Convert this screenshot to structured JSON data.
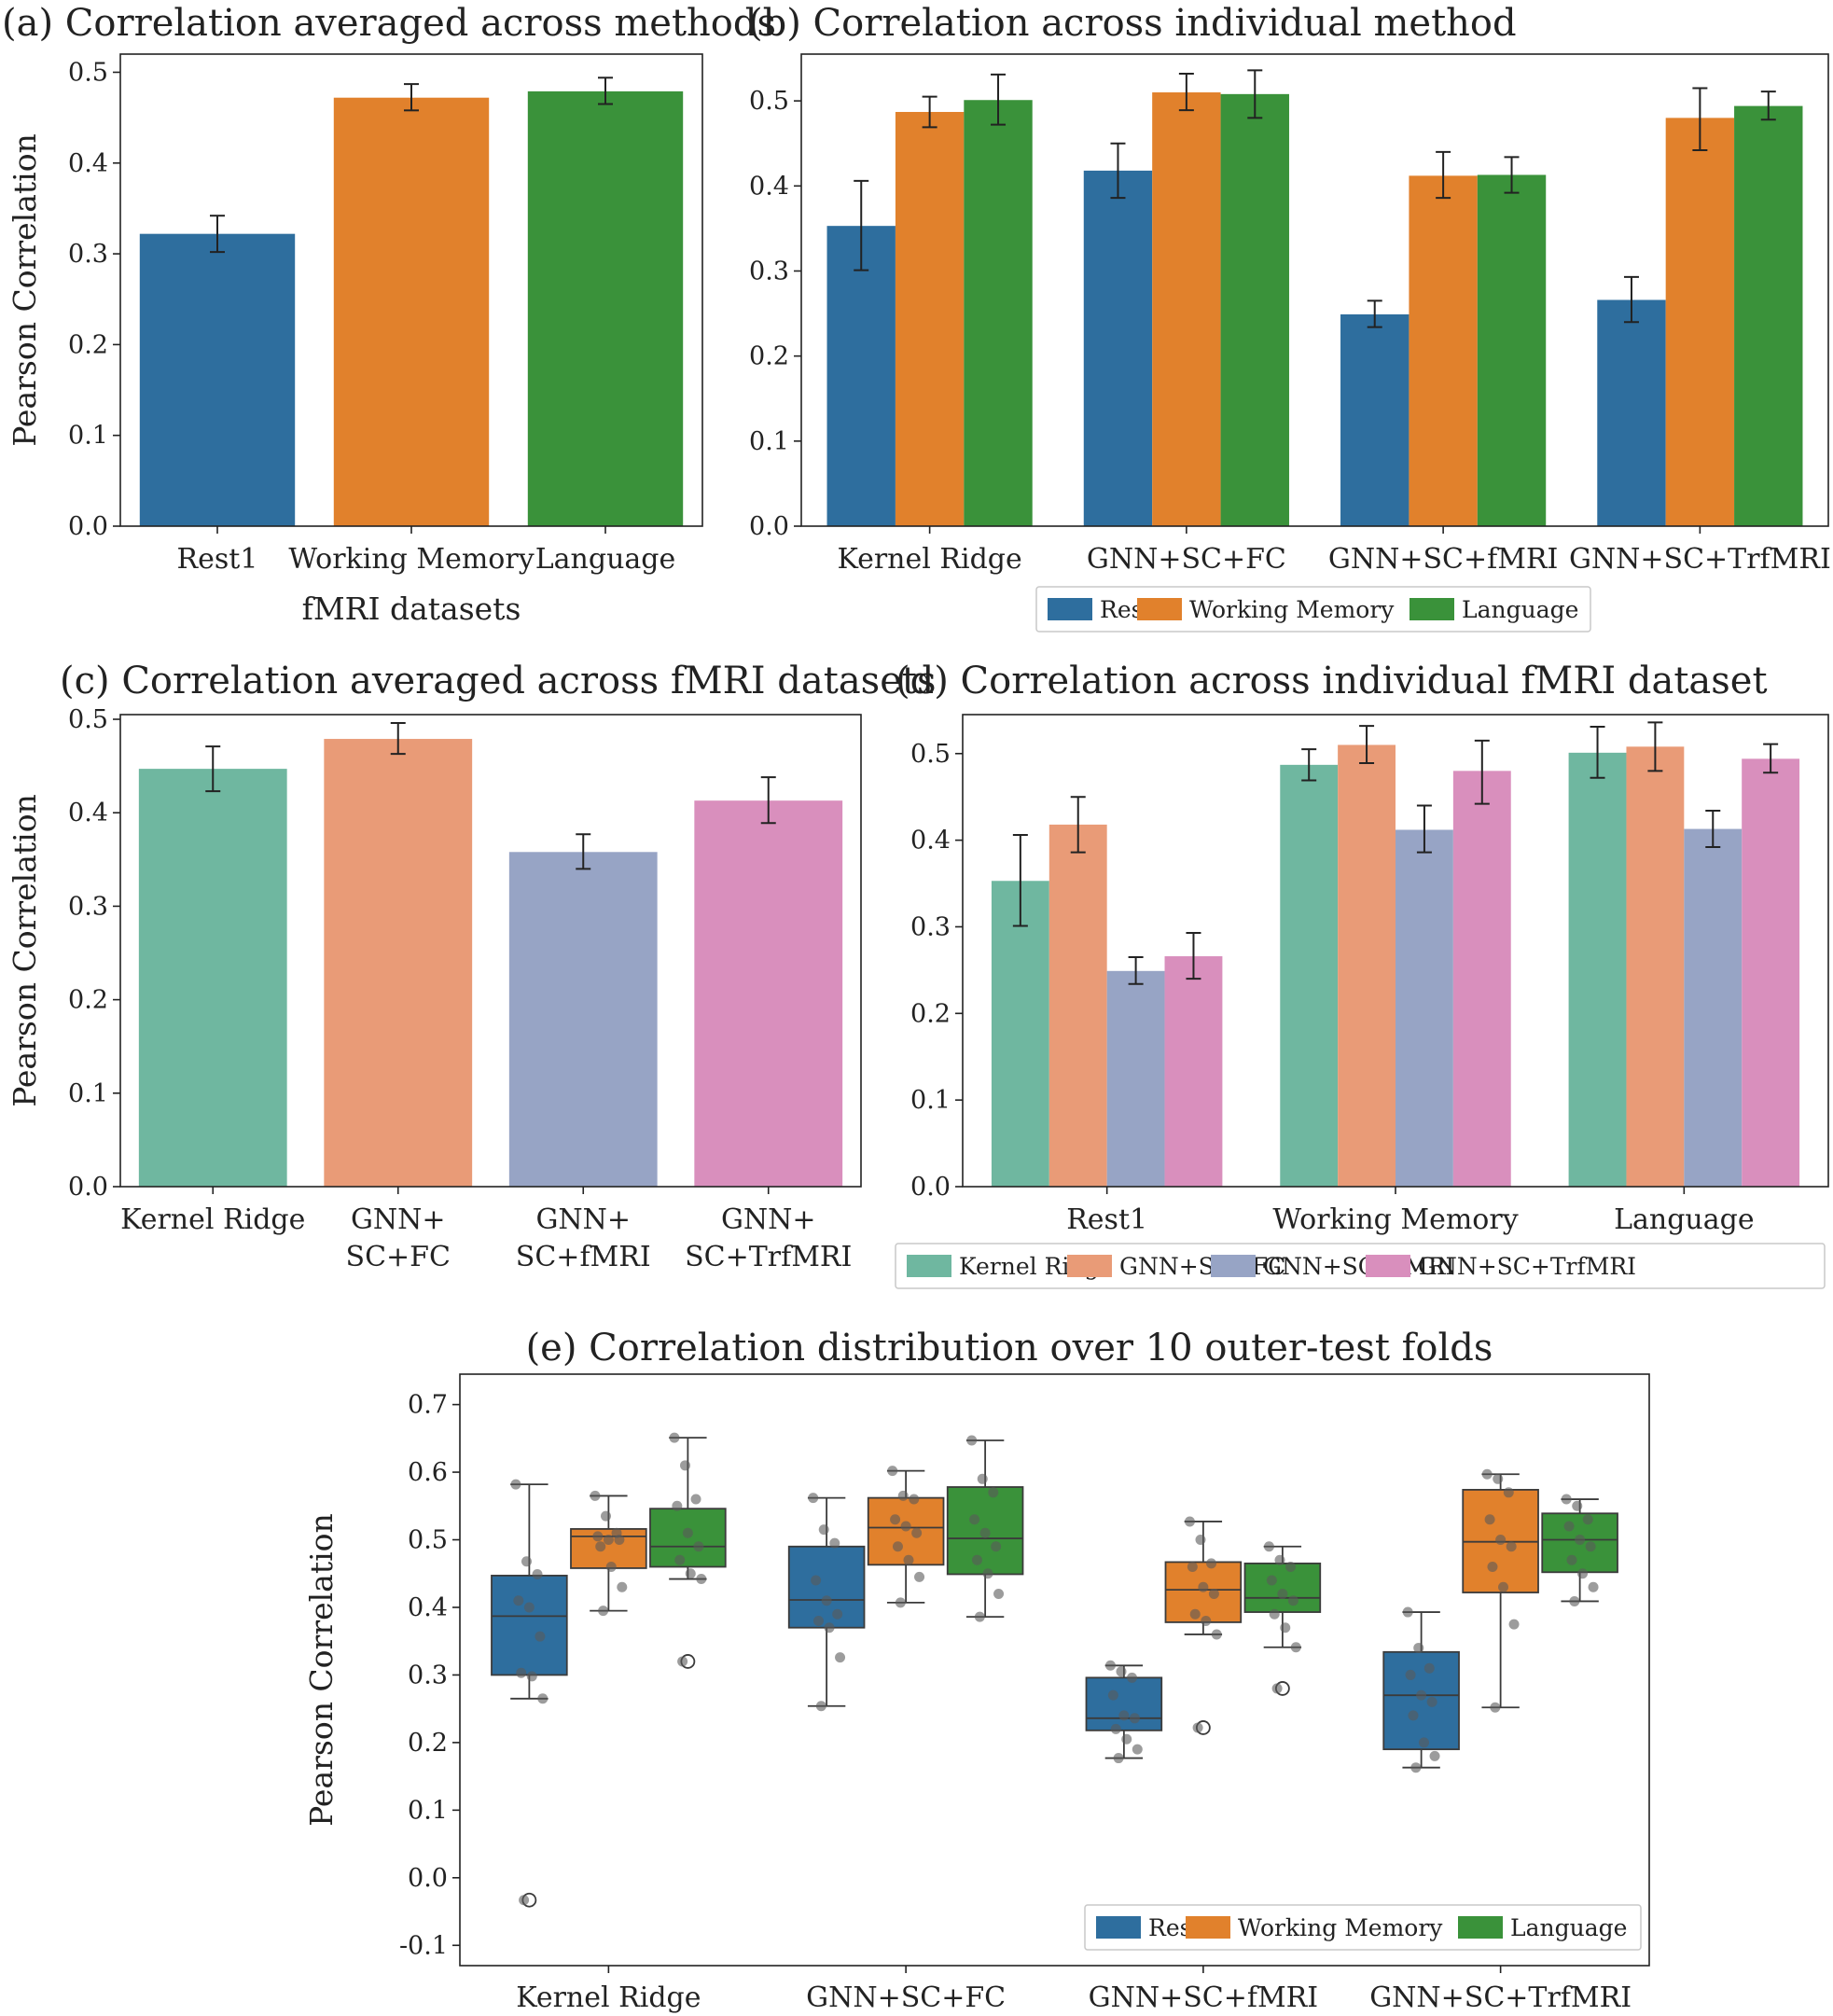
{
  "chart_data": [
    {
      "id": "a",
      "type": "bar",
      "title": "(a)  Correlation averaged across methods",
      "xlabel": "fMRI datasets",
      "ylabel": "Pearson Correlation",
      "ylim": [
        0,
        0.52
      ],
      "yticks": [
        0.0,
        0.1,
        0.2,
        0.3,
        0.4,
        0.5
      ],
      "ytick_labels": [
        "0.0",
        "0.1",
        "0.2",
        "0.3",
        "0.4",
        "0.5"
      ],
      "categories": [
        "Rest1",
        "Working Memory",
        "Language"
      ],
      "values": [
        0.322,
        0.472,
        0.479
      ],
      "errors": [
        [
          0.302,
          0.342
        ],
        [
          0.458,
          0.487
        ],
        [
          0.465,
          0.494
        ]
      ],
      "colors": [
        "#2e6e9e",
        "#e1812c",
        "#3a923a"
      ]
    },
    {
      "id": "b",
      "type": "bar",
      "title": "(b)    Correlation across individual method",
      "xlabel": "",
      "ylabel": "",
      "ylim": [
        0,
        0.555
      ],
      "yticks": [
        0.0,
        0.1,
        0.2,
        0.3,
        0.4,
        0.5
      ],
      "ytick_labels": [
        "0.0",
        "0.1",
        "0.2",
        "0.3",
        "0.4",
        "0.5"
      ],
      "categories": [
        "Kernel Ridge",
        "GNN+SC+FC",
        "GNN+SC+fMRI",
        "GNN+SC+TrfMRI"
      ],
      "series": [
        {
          "name": "Rest1",
          "color": "#2e6e9e",
          "values": [
            0.353,
            0.418,
            0.249,
            0.266
          ],
          "errors": [
            [
              0.301,
              0.406
            ],
            [
              0.386,
              0.45
            ],
            [
              0.234,
              0.265
            ],
            [
              0.24,
              0.293
            ]
          ]
        },
        {
          "name": "Working Memory",
          "color": "#e1812c",
          "values": [
            0.487,
            0.51,
            0.412,
            0.48
          ],
          "errors": [
            [
              0.469,
              0.505
            ],
            [
              0.489,
              0.532
            ],
            [
              0.386,
              0.44
            ],
            [
              0.442,
              0.515
            ]
          ]
        },
        {
          "name": "Language",
          "color": "#3a923a",
          "values": [
            0.501,
            0.508,
            0.413,
            0.494
          ],
          "errors": [
            [
              0.472,
              0.531
            ],
            [
              0.48,
              0.536
            ],
            [
              0.392,
              0.434
            ],
            [
              0.478,
              0.511
            ]
          ]
        }
      ],
      "legend": {
        "position": "below",
        "entries": [
          "Rest1",
          "Working Memory",
          "Language"
        ]
      }
    },
    {
      "id": "c",
      "type": "bar",
      "title": "(c)  Correlation averaged across fMRI datasets",
      "xlabel": "",
      "ylabel": "Pearson Correlation",
      "ylim": [
        0,
        0.505
      ],
      "yticks": [
        0.0,
        0.1,
        0.2,
        0.3,
        0.4,
        0.5
      ],
      "ytick_labels": [
        "0.0",
        "0.1",
        "0.2",
        "0.3",
        "0.4",
        "0.5"
      ],
      "categories": [
        "Kernel Ridge",
        "GNN+\nSC+FC",
        "GNN+\nSC+fMRI",
        "GNN+\nSC+TrfMRI"
      ],
      "values": [
        0.447,
        0.479,
        0.358,
        0.413
      ],
      "errors": [
        [
          0.423,
          0.471
        ],
        [
          0.463,
          0.496
        ],
        [
          0.34,
          0.377
        ],
        [
          0.389,
          0.438
        ]
      ],
      "colors": [
        "#6fb7a0",
        "#e99b77",
        "#97a4c5",
        "#d98fbd"
      ]
    },
    {
      "id": "d",
      "type": "bar",
      "title": "(d)    Correlation across individual fMRI dataset",
      "xlabel": "",
      "ylabel": "",
      "ylim": [
        0,
        0.545
      ],
      "yticks": [
        0.0,
        0.1,
        0.2,
        0.3,
        0.4,
        0.5
      ],
      "ytick_labels": [
        "0.0",
        "0.1",
        "0.2",
        "0.3",
        "0.4",
        "0.5"
      ],
      "categories": [
        "Rest1",
        "Working Memory",
        "Language"
      ],
      "series": [
        {
          "name": "Kernel Ridge",
          "color": "#6fb7a0",
          "values": [
            0.353,
            0.487,
            0.501
          ],
          "errors": [
            [
              0.301,
              0.406
            ],
            [
              0.469,
              0.505
            ],
            [
              0.472,
              0.531
            ]
          ]
        },
        {
          "name": "GNN+SC+FC",
          "color": "#e99b77",
          "values": [
            0.418,
            0.51,
            0.508
          ],
          "errors": [
            [
              0.386,
              0.45
            ],
            [
              0.489,
              0.532
            ],
            [
              0.48,
              0.536
            ]
          ]
        },
        {
          "name": "GNN+SC+fMRI",
          "color": "#97a4c5",
          "values": [
            0.249,
            0.412,
            0.413
          ],
          "errors": [
            [
              0.234,
              0.265
            ],
            [
              0.386,
              0.44
            ],
            [
              0.392,
              0.434
            ]
          ]
        },
        {
          "name": "GNN+SC+TrfMRI",
          "color": "#d98fbd",
          "values": [
            0.266,
            0.48,
            0.494
          ],
          "errors": [
            [
              0.24,
              0.293
            ],
            [
              0.442,
              0.515
            ],
            [
              0.478,
              0.511
            ]
          ]
        }
      ],
      "legend": {
        "position": "below",
        "entries": [
          "Kernel Ridge",
          "GNN+SC+FC",
          "GNN+SC+fMRI",
          "GNN+SC+TrfMRI"
        ]
      }
    },
    {
      "id": "e",
      "type": "box",
      "title": "(e)  Correlation distribution over 10 outer-test folds",
      "xlabel": "",
      "ylabel": "Pearson Correlation",
      "ylim": [
        -0.13,
        0.745
      ],
      "yticks": [
        -0.1,
        0.0,
        0.1,
        0.2,
        0.3,
        0.4,
        0.5,
        0.6,
        0.7
      ],
      "ytick_labels": [
        "-0.1",
        "0.0",
        "0.1",
        "0.2",
        "0.3",
        "0.4",
        "0.5",
        "0.6",
        "0.7"
      ],
      "categories": [
        "Kernel Ridge",
        "GNN+SC+FC",
        "GNN+SC+fMRI",
        "GNN+SC+TrfMRI"
      ],
      "series": [
        {
          "name": "Rest1",
          "color": "#2e6e9e",
          "boxes": [
            {
              "min": 0.265,
              "q1": 0.3,
              "median": 0.387,
              "q3": 0.447,
              "max": 0.582,
              "outliers": [
                -0.033
              ],
              "points": [
                0.582,
                0.468,
                0.449,
                0.41,
                0.4,
                0.357,
                0.303,
                0.298,
                0.265,
                -0.033
              ]
            },
            {
              "min": 0.254,
              "q1": 0.37,
              "median": 0.411,
              "q3": 0.49,
              "max": 0.562,
              "outliers": [],
              "points": [
                0.562,
                0.515,
                0.495,
                0.44,
                0.41,
                0.39,
                0.38,
                0.37,
                0.326,
                0.254
              ]
            },
            {
              "min": 0.177,
              "q1": 0.218,
              "median": 0.236,
              "q3": 0.296,
              "max": 0.314,
              "outliers": [],
              "points": [
                0.314,
                0.305,
                0.296,
                0.27,
                0.24,
                0.236,
                0.22,
                0.205,
                0.19,
                0.177
              ]
            },
            {
              "min": 0.163,
              "q1": 0.19,
              "median": 0.27,
              "q3": 0.334,
              "max": 0.393,
              "outliers": [],
              "points": [
                0.393,
                0.34,
                0.31,
                0.3,
                0.27,
                0.26,
                0.24,
                0.2,
                0.18,
                0.163
              ]
            }
          ]
        },
        {
          "name": "Working Memory",
          "color": "#e1812c",
          "boxes": [
            {
              "min": 0.395,
              "q1": 0.458,
              "median": 0.505,
              "q3": 0.516,
              "max": 0.565,
              "outliers": [],
              "points": [
                0.565,
                0.535,
                0.51,
                0.505,
                0.5,
                0.5,
                0.49,
                0.46,
                0.43,
                0.395
              ]
            },
            {
              "min": 0.407,
              "q1": 0.463,
              "median": 0.518,
              "q3": 0.562,
              "max": 0.602,
              "outliers": [],
              "points": [
                0.602,
                0.565,
                0.56,
                0.53,
                0.52,
                0.51,
                0.49,
                0.47,
                0.445,
                0.407
              ]
            },
            {
              "min": 0.36,
              "q1": 0.378,
              "median": 0.426,
              "q3": 0.467,
              "max": 0.527,
              "outliers": [
                0.222
              ],
              "points": [
                0.527,
                0.5,
                0.465,
                0.46,
                0.43,
                0.42,
                0.39,
                0.38,
                0.36,
                0.222
              ]
            },
            {
              "min": 0.252,
              "q1": 0.422,
              "median": 0.497,
              "q3": 0.574,
              "max": 0.597,
              "outliers": [],
              "points": [
                0.597,
                0.59,
                0.57,
                0.53,
                0.5,
                0.49,
                0.46,
                0.43,
                0.375,
                0.252
              ]
            }
          ]
        },
        {
          "name": "Language",
          "color": "#3a923a",
          "boxes": [
            {
              "min": 0.442,
              "q1": 0.46,
              "median": 0.49,
              "q3": 0.546,
              "max": 0.651,
              "outliers": [
                0.32
              ],
              "points": [
                0.651,
                0.61,
                0.56,
                0.55,
                0.51,
                0.49,
                0.47,
                0.45,
                0.442,
                0.32
              ]
            },
            {
              "min": 0.386,
              "q1": 0.449,
              "median": 0.502,
              "q3": 0.578,
              "max": 0.647,
              "outliers": [],
              "points": [
                0.647,
                0.59,
                0.57,
                0.53,
                0.51,
                0.49,
                0.47,
                0.45,
                0.42,
                0.386
              ]
            },
            {
              "min": 0.341,
              "q1": 0.393,
              "median": 0.414,
              "q3": 0.465,
              "max": 0.49,
              "outliers": [
                0.28
              ],
              "points": [
                0.49,
                0.47,
                0.46,
                0.44,
                0.42,
                0.41,
                0.39,
                0.37,
                0.341,
                0.28
              ]
            },
            {
              "min": 0.409,
              "q1": 0.452,
              "median": 0.5,
              "q3": 0.539,
              "max": 0.56,
              "outliers": [],
              "points": [
                0.56,
                0.55,
                0.53,
                0.52,
                0.5,
                0.49,
                0.47,
                0.45,
                0.43,
                0.409
              ]
            }
          ]
        }
      ],
      "legend": {
        "position": "lower right",
        "entries": [
          "Rest1",
          "Working Memory",
          "Language"
        ]
      }
    }
  ]
}
